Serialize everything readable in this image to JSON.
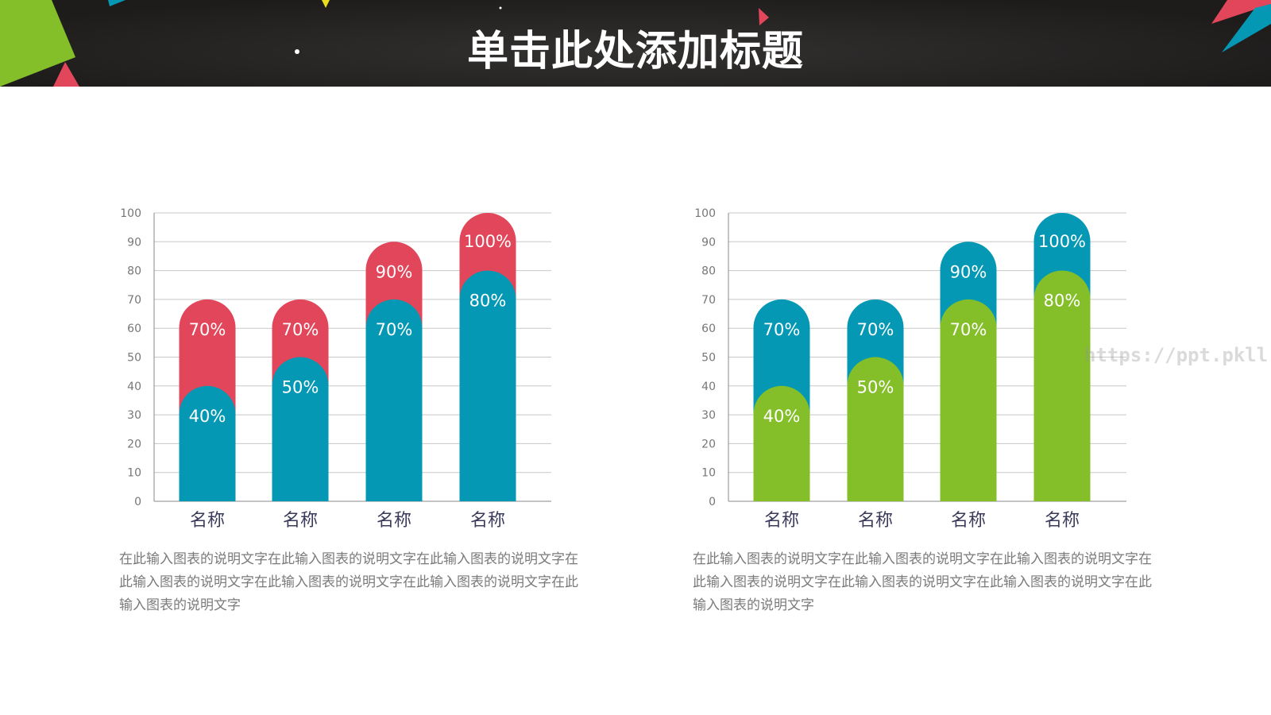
{
  "header": {
    "title": "单击此处添加标题"
  },
  "watermark": "https://ppt.pkll.de",
  "colors": {
    "red": "#e2465a",
    "teal": "#0498b4",
    "green": "#84bf2a",
    "axis": "#888",
    "grid": "#c8c8c8",
    "category": "#3a3a5a"
  },
  "chart_data": [
    {
      "type": "bar",
      "categories": [
        "名称",
        "名称",
        "名称",
        "名称"
      ],
      "ylim": [
        0,
        100
      ],
      "yticks": [
        0,
        10,
        20,
        30,
        40,
        50,
        60,
        70,
        80,
        90,
        100
      ],
      "grid": true,
      "series": [
        {
          "values": [
            70,
            70,
            90,
            100
          ],
          "labels": [
            "70%",
            "70%",
            "90%",
            "100%"
          ],
          "color": "#e2465a"
        },
        {
          "values": [
            40,
            50,
            70,
            80
          ],
          "labels": [
            "40%",
            "50%",
            "70%",
            "80%"
          ],
          "color": "#0498b4"
        }
      ],
      "description": "在此输入图表的说明文字在此输入图表的说明文字在此输入图表的说明文字在此输入图表的说明文字在此输入图表的说明文字在此输入图表的说明文字在此输入图表的说明文字"
    },
    {
      "type": "bar",
      "categories": [
        "名称",
        "名称",
        "名称",
        "名称"
      ],
      "ylim": [
        0,
        100
      ],
      "yticks": [
        0,
        10,
        20,
        30,
        40,
        50,
        60,
        70,
        80,
        90,
        100
      ],
      "grid": true,
      "series": [
        {
          "values": [
            70,
            70,
            90,
            100
          ],
          "labels": [
            "70%",
            "70%",
            "90%",
            "100%"
          ],
          "color": "#0498b4"
        },
        {
          "values": [
            40,
            50,
            70,
            80
          ],
          "labels": [
            "40%",
            "50%",
            "70%",
            "80%"
          ],
          "color": "#84bf2a"
        }
      ],
      "description": "在此输入图表的说明文字在此输入图表的说明文字在此输入图表的说明文字在此输入图表的说明文字在此输入图表的说明文字在此输入图表的说明文字在此输入图表的说明文字"
    }
  ]
}
